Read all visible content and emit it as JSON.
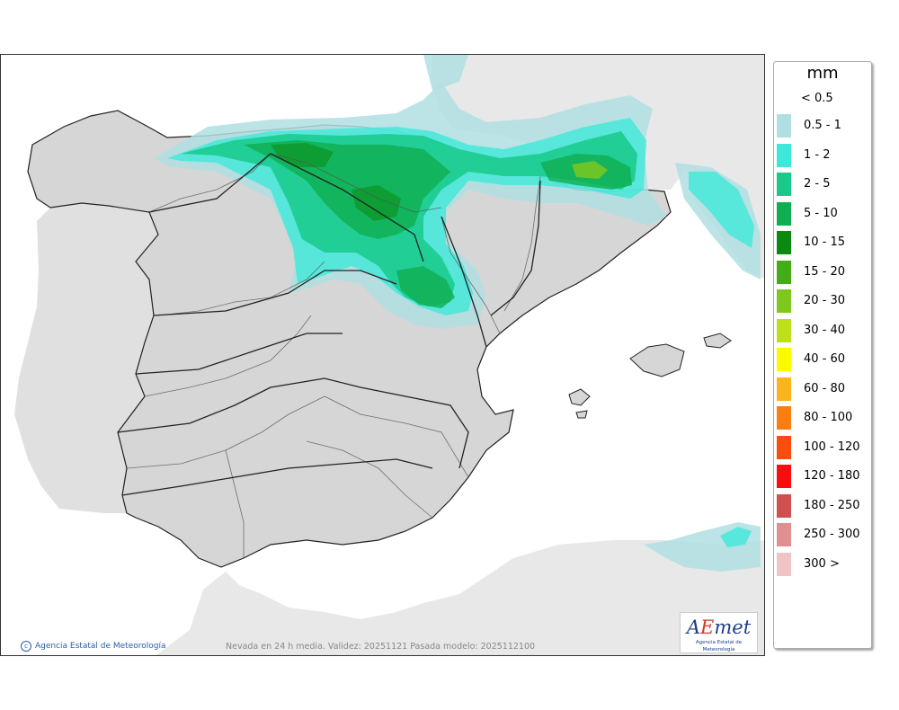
{
  "legend": {
    "unit": "mm",
    "lowest_label": "< 0.5",
    "classes": [
      {
        "label": "0.5 - 1",
        "color": "#b0dfe2"
      },
      {
        "label": "1 - 2",
        "color": "#3ee8d8"
      },
      {
        "label": "2 - 5",
        "color": "#18c98a"
      },
      {
        "label": "5 - 10",
        "color": "#0fae50"
      },
      {
        "label": "10 - 15",
        "color": "#0a8a10"
      },
      {
        "label": "15 - 20",
        "color": "#42ad16"
      },
      {
        "label": "20 - 30",
        "color": "#7dc81e"
      },
      {
        "label": "30 - 40",
        "color": "#bde01a"
      },
      {
        "label": "40 - 60",
        "color": "#fafa00"
      },
      {
        "label": "60 - 80",
        "color": "#fab41e"
      },
      {
        "label": "80 - 100",
        "color": "#fa7d12"
      },
      {
        "label": "100 - 120",
        "color": "#f84d0c"
      },
      {
        "label": "120 - 180",
        "color": "#f80e0e"
      },
      {
        "label": "180 - 250",
        "color": "#d05050"
      },
      {
        "label": "250 - 300",
        "color": "#e09090"
      },
      {
        "label": "300 >",
        "color": "#f0c4c4"
      }
    ]
  },
  "map": {
    "credit": "Agencia Estatal de Meteorología",
    "caption": "Nevada en 24 h media. Validez: 20251121 Pasada modelo: 2025112100",
    "logo": {
      "wordmark_a": "A",
      "wordmark_e": "E",
      "wordmark_rest": "met",
      "subtitle": "Agencia Estatal de Meteorología"
    },
    "colors": {
      "land": "#d6d6d6",
      "foreign_land": "#e8e8e8",
      "sea": "#ffffff",
      "borders": "#222222"
    }
  }
}
